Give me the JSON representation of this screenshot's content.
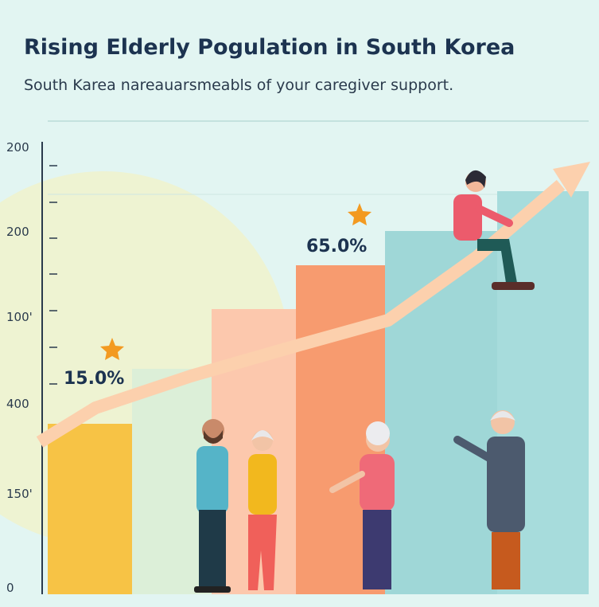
{
  "header": {
    "title": "Rising Elderly Pogulation in South Korea",
    "subtitle": "South Karea nareauarsmeabls of your caregiver support."
  },
  "axis_labels": [
    "200",
    "200",
    "100'",
    "400",
    "150'",
    "0"
  ],
  "annotations": [
    "15.0%",
    "65.0%"
  ]
}
